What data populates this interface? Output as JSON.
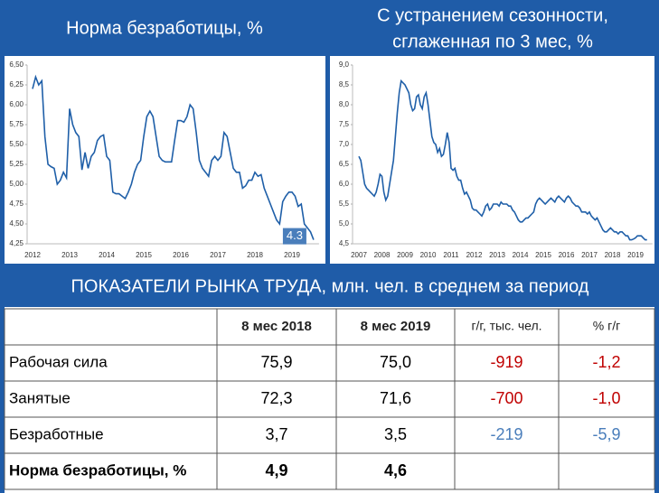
{
  "header": {
    "left_title": "Норма безработицы, %",
    "right_title_1": "С устранением сезонности,",
    "right_title_2": "сглаженная по 3 мес, %",
    "section_title": "ПОКАЗАТЕЛИ РЫНКА ТРУДА, млн. чел. в среднем за период"
  },
  "chart_data": [
    {
      "type": "line",
      "color": "#1f5fa8",
      "annotation": "4.3",
      "categories": [
        "2012",
        null,
        null,
        null,
        null,
        null,
        null,
        null,
        null,
        null,
        null,
        null,
        "2013",
        null,
        null,
        null,
        null,
        null,
        null,
        null,
        null,
        null,
        null,
        null,
        "2014",
        null,
        null,
        null,
        null,
        null,
        null,
        null,
        null,
        null,
        null,
        null,
        "2015",
        null,
        null,
        null,
        null,
        null,
        null,
        null,
        null,
        null,
        null,
        null,
        "2016",
        null,
        null,
        null,
        null,
        null,
        null,
        null,
        null,
        null,
        null,
        null,
        "2017",
        null,
        null,
        null,
        null,
        null,
        null,
        null,
        null,
        null,
        null,
        null,
        "2018",
        null,
        null,
        null,
        null,
        null,
        null,
        null,
        null,
        null,
        null,
        null,
        "2019",
        null,
        null,
        null,
        null,
        null,
        null,
        null
      ],
      "values": [
        6.2,
        6.35,
        6.25,
        6.3,
        5.6,
        5.25,
        5.22,
        5.2,
        5.0,
        5.05,
        5.15,
        5.08,
        5.95,
        5.75,
        5.65,
        5.6,
        5.18,
        5.4,
        5.2,
        5.35,
        5.4,
        5.55,
        5.6,
        5.62,
        5.35,
        5.3,
        4.9,
        4.88,
        4.88,
        4.85,
        4.82,
        4.9,
        5.0,
        5.15,
        5.25,
        5.3,
        5.6,
        5.85,
        5.92,
        5.85,
        5.6,
        5.35,
        5.3,
        5.28,
        5.28,
        5.28,
        5.55,
        5.8,
        5.8,
        5.78,
        5.85,
        6.0,
        5.95,
        5.65,
        5.3,
        5.2,
        5.15,
        5.1,
        5.3,
        5.35,
        5.3,
        5.35,
        5.65,
        5.6,
        5.4,
        5.2,
        5.15,
        5.15,
        4.95,
        4.98,
        5.05,
        5.05,
        5.15,
        5.1,
        5.12,
        4.95,
        4.85,
        4.75,
        4.65,
        4.55,
        4.5,
        4.78,
        4.85,
        4.9,
        4.9,
        4.85,
        4.72,
        4.75,
        4.5,
        4.45,
        4.4,
        4.3
      ],
      "ylim": [
        4.25,
        6.5
      ],
      "yticks": [
        {
          "value": 4.25,
          "label": "4,25"
        },
        {
          "value": 4.5,
          "label": "4,50"
        },
        {
          "value": 4.75,
          "label": "4,75"
        },
        {
          "value": 5.0,
          "label": "5,00"
        },
        {
          "value": 5.25,
          "label": "5,25"
        },
        {
          "value": 5.5,
          "label": "5,50"
        },
        {
          "value": 5.75,
          "label": "5,75"
        },
        {
          "value": 6.0,
          "label": "6,00"
        },
        {
          "value": 6.25,
          "label": "6,25"
        },
        {
          "value": 6.5,
          "label": "6,50"
        }
      ]
    },
    {
      "type": "line",
      "color": "#1f5fa8",
      "categories": [
        "2007",
        null,
        null,
        null,
        null,
        null,
        null,
        null,
        null,
        null,
        null,
        null,
        "2008",
        null,
        null,
        null,
        null,
        null,
        null,
        null,
        null,
        null,
        null,
        null,
        "2009",
        null,
        null,
        null,
        null,
        null,
        null,
        null,
        null,
        null,
        null,
        null,
        "2010",
        null,
        null,
        null,
        null,
        null,
        null,
        null,
        null,
        null,
        null,
        null,
        "2011",
        null,
        null,
        null,
        null,
        null,
        null,
        null,
        null,
        null,
        null,
        null,
        "2012",
        null,
        null,
        null,
        null,
        null,
        null,
        null,
        null,
        null,
        null,
        null,
        "2013",
        null,
        null,
        null,
        null,
        null,
        null,
        null,
        null,
        null,
        null,
        null,
        "2014",
        null,
        null,
        null,
        null,
        null,
        null,
        null,
        null,
        null,
        null,
        null,
        "2015",
        null,
        null,
        null,
        null,
        null,
        null,
        null,
        null,
        null,
        null,
        null,
        "2016",
        null,
        null,
        null,
        null,
        null,
        null,
        null,
        null,
        null,
        null,
        null,
        "2017",
        null,
        null,
        null,
        null,
        null,
        null,
        null,
        null,
        null,
        null,
        null,
        "2018",
        null,
        null,
        null,
        null,
        null,
        null,
        null,
        null,
        null,
        null,
        null,
        "2019",
        null,
        null,
        null,
        null,
        null,
        null
      ],
      "values": [
        6.7,
        6.6,
        6.3,
        6.0,
        5.9,
        5.85,
        5.8,
        5.75,
        5.7,
        5.8,
        6.0,
        6.25,
        6.2,
        5.8,
        5.6,
        5.7,
        6.0,
        6.3,
        6.6,
        7.2,
        7.8,
        8.3,
        8.6,
        8.55,
        8.5,
        8.4,
        8.3,
        8.0,
        7.85,
        7.9,
        8.2,
        8.25,
        8.0,
        7.9,
        8.2,
        8.3,
        8.0,
        7.6,
        7.2,
        7.05,
        7.0,
        6.8,
        6.9,
        6.7,
        6.75,
        7.0,
        7.3,
        7.05,
        6.4,
        6.35,
        6.4,
        6.2,
        6.1,
        6.1,
        5.9,
        5.75,
        5.8,
        5.7,
        5.6,
        5.4,
        5.35,
        5.35,
        5.3,
        5.25,
        5.2,
        5.3,
        5.45,
        5.5,
        5.35,
        5.4,
        5.5,
        5.5,
        5.5,
        5.45,
        5.55,
        5.5,
        5.5,
        5.5,
        5.45,
        5.45,
        5.35,
        5.3,
        5.2,
        5.1,
        5.05,
        5.05,
        5.1,
        5.15,
        5.15,
        5.2,
        5.25,
        5.3,
        5.5,
        5.6,
        5.65,
        5.6,
        5.55,
        5.5,
        5.55,
        5.6,
        5.65,
        5.6,
        5.55,
        5.65,
        5.7,
        5.65,
        5.6,
        5.55,
        5.65,
        5.7,
        5.65,
        5.55,
        5.5,
        5.45,
        5.45,
        5.4,
        5.3,
        5.3,
        5.3,
        5.25,
        5.3,
        5.2,
        5.15,
        5.1,
        5.15,
        5.05,
        4.95,
        4.85,
        4.8,
        4.8,
        4.85,
        4.9,
        4.85,
        4.8,
        4.8,
        4.75,
        4.8,
        4.8,
        4.75,
        4.7,
        4.7,
        4.6,
        4.6,
        4.62,
        4.65,
        4.7,
        4.7,
        4.7,
        4.65,
        4.6,
        4.6
      ],
      "ylim": [
        4.5,
        9.0
      ],
      "yticks": [
        {
          "value": 4.5,
          "label": "4,5"
        },
        {
          "value": 5.0,
          "label": "5,0"
        },
        {
          "value": 5.5,
          "label": "5,5"
        },
        {
          "value": 6.0,
          "label": "6,0"
        },
        {
          "value": 6.5,
          "label": "6,5"
        },
        {
          "value": 7.0,
          "label": "7,0"
        },
        {
          "value": 7.5,
          "label": "7,5"
        },
        {
          "value": 8.0,
          "label": "8,0"
        },
        {
          "value": 8.5,
          "label": "8,5"
        },
        {
          "value": 9.0,
          "label": "9,0"
        }
      ]
    }
  ],
  "table": {
    "columns": [
      "8 мес 2018",
      "8 мес 2019",
      "г/г, тыс. чел.",
      "% г/г"
    ],
    "rows": [
      {
        "label": "Рабочая сила",
        "cells": [
          "75,9",
          "75,0",
          "-919",
          "-1,2"
        ],
        "change_color": "#c00000"
      },
      {
        "label": "Занятые",
        "cells": [
          "72,3",
          "71,6",
          "-700",
          "-1,0"
        ],
        "change_color": "#c00000"
      },
      {
        "label": "Безработные",
        "cells": [
          "3,7",
          "3,5",
          "-219",
          "-5,9"
        ],
        "change_color": "#4a7ebb"
      },
      {
        "label": "Норма безработицы, %",
        "cells": [
          "4,9",
          "4,6"
        ],
        "bold": true
      }
    ]
  }
}
